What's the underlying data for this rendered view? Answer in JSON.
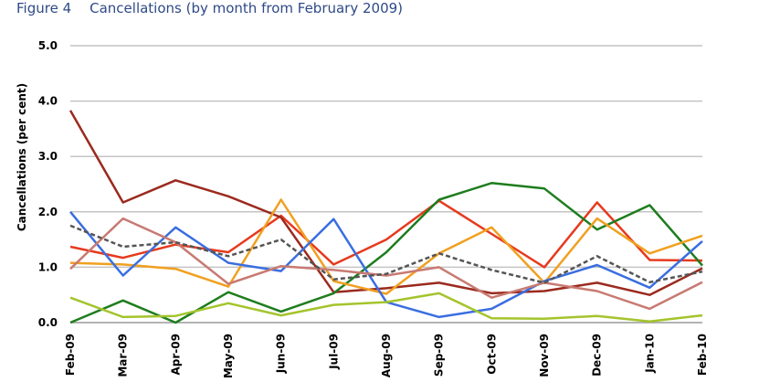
{
  "figure": {
    "label": "Figure 4",
    "title": "Cancellations (by month from February 2009)"
  },
  "chart_data": {
    "type": "line",
    "title": "Cancellations (by month from February 2009)",
    "xlabel": "",
    "ylabel": "Cancellations (per cent)",
    "ylim": [
      0,
      5
    ],
    "yticks": [
      0,
      1,
      2,
      3,
      4,
      5
    ],
    "ytick_labels": [
      "0.0",
      "1.0",
      "2.0",
      "3.0",
      "4.0",
      "5.0"
    ],
    "grid": "horizontal",
    "legend": "none",
    "categories": [
      "Feb-09",
      "Mar-09",
      "Apr-09",
      "May-09",
      "Jun-09",
      "Jul-09",
      "Aug-09",
      "Sep-09",
      "Oct-09",
      "Nov-09",
      "Dec-09",
      "Jan-10",
      "Feb-10"
    ],
    "series": [
      {
        "color": "#e63a1e",
        "dashed": false,
        "values": [
          1.37,
          1.17,
          1.41,
          1.27,
          1.93,
          1.05,
          1.5,
          2.2,
          1.6,
          1.0,
          2.17,
          1.13,
          1.12
        ]
      },
      {
        "color": "#9b2a1e",
        "dashed": false,
        "values": [
          3.83,
          2.17,
          2.57,
          2.28,
          1.9,
          0.55,
          0.62,
          0.72,
          0.53,
          0.57,
          0.72,
          0.5,
          0.98
        ]
      },
      {
        "color": "#1e7d1e",
        "dashed": false,
        "values": [
          0.0,
          0.4,
          0.0,
          0.55,
          0.2,
          0.53,
          1.27,
          2.22,
          2.52,
          2.42,
          1.68,
          2.12,
          1.03
        ]
      },
      {
        "color": "#f0a020",
        "dashed": false,
        "values": [
          1.08,
          1.05,
          0.97,
          0.65,
          2.22,
          0.75,
          0.52,
          1.25,
          1.72,
          0.72,
          1.88,
          1.25,
          1.57
        ]
      },
      {
        "color": "#3a6ee0",
        "dashed": false,
        "values": [
          2.0,
          0.85,
          1.72,
          1.08,
          0.93,
          1.87,
          0.37,
          0.1,
          0.25,
          0.75,
          1.04,
          0.63,
          1.47
        ]
      },
      {
        "color": "#c87a72",
        "dashed": false,
        "values": [
          0.97,
          1.88,
          1.45,
          0.7,
          1.02,
          0.95,
          0.85,
          1.0,
          0.45,
          0.72,
          0.57,
          0.25,
          0.73
        ]
      },
      {
        "color": "#555555",
        "dashed": true,
        "values": [
          1.75,
          1.37,
          1.45,
          1.2,
          1.5,
          0.78,
          0.88,
          1.25,
          0.95,
          0.72,
          1.2,
          0.73,
          0.92
        ]
      },
      {
        "color": "#a4c42c",
        "dashed": false,
        "values": [
          0.45,
          0.1,
          0.12,
          0.35,
          0.13,
          0.32,
          0.37,
          0.53,
          0.08,
          0.07,
          0.12,
          0.02,
          0.13
        ]
      }
    ]
  }
}
